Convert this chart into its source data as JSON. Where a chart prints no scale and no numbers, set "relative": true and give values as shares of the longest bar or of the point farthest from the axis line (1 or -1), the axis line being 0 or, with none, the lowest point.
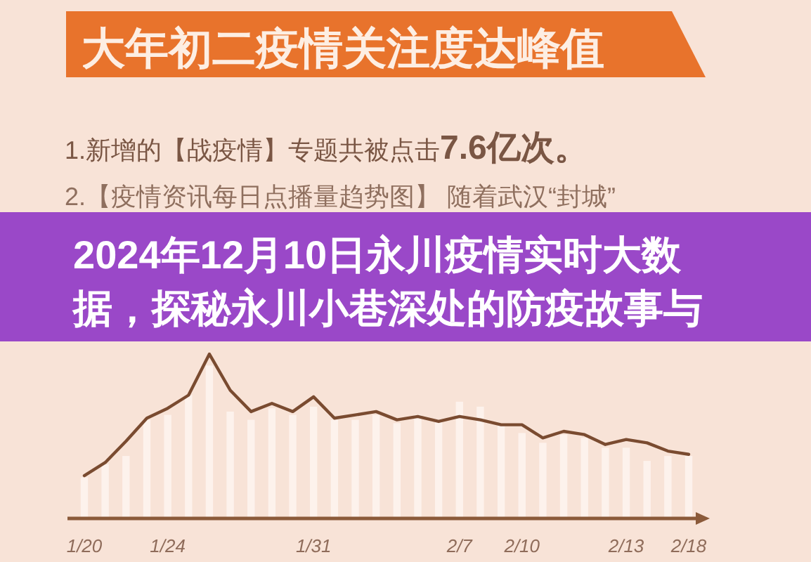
{
  "chart_data": {
    "type": "line",
    "title": "大年初二疫情关注度达峰值",
    "annotations": [
      "1.新增的【战疫情】专题共被点击**7.6亿次。**",
      "2.【疫情资讯每日点播量趋势图】 随着武汉“封城”",
      "2024年12月10日永川疫情实时大数据，探秘永川小巷深处的防疫故事与"
    ],
    "categories": [
      "1/20",
      null,
      null,
      null,
      "1/24",
      null,
      null,
      null,
      null,
      null,
      null,
      "1/31",
      null,
      null,
      null,
      null,
      null,
      null,
      "2/7",
      null,
      null,
      "2/10",
      null,
      null,
      null,
      null,
      "2/13",
      null,
      null,
      "2/18"
    ],
    "relative": true,
    "series": [
      {
        "type": "bar",
        "color": "#fdf2ec",
        "values": [
          0.25,
          0.33,
          0.38,
          0.6,
          0.63,
          0.75,
          0.93,
          0.65,
          0.6,
          0.67,
          0.63,
          0.68,
          0.6,
          0.6,
          0.63,
          0.58,
          0.63,
          0.6,
          0.71,
          0.68,
          0.57,
          0.52,
          0.46,
          0.51,
          0.49,
          0.43,
          0.43,
          0.35,
          0.38,
          0.38
        ]
      },
      {
        "color": "#7a4b30",
        "values": [
          0.26,
          0.34,
          0.47,
          0.61,
          0.67,
          0.75,
          1,
          0.78,
          0.65,
          0.7,
          0.65,
          0.74,
          0.61,
          0.63,
          0.65,
          0.6,
          0.62,
          0.59,
          0.62,
          0.6,
          0.57,
          0.57,
          0.49,
          0.53,
          0.51,
          0.45,
          0.48,
          0.46,
          0.41,
          0.39
        ]
      }
    ]
  }
}
